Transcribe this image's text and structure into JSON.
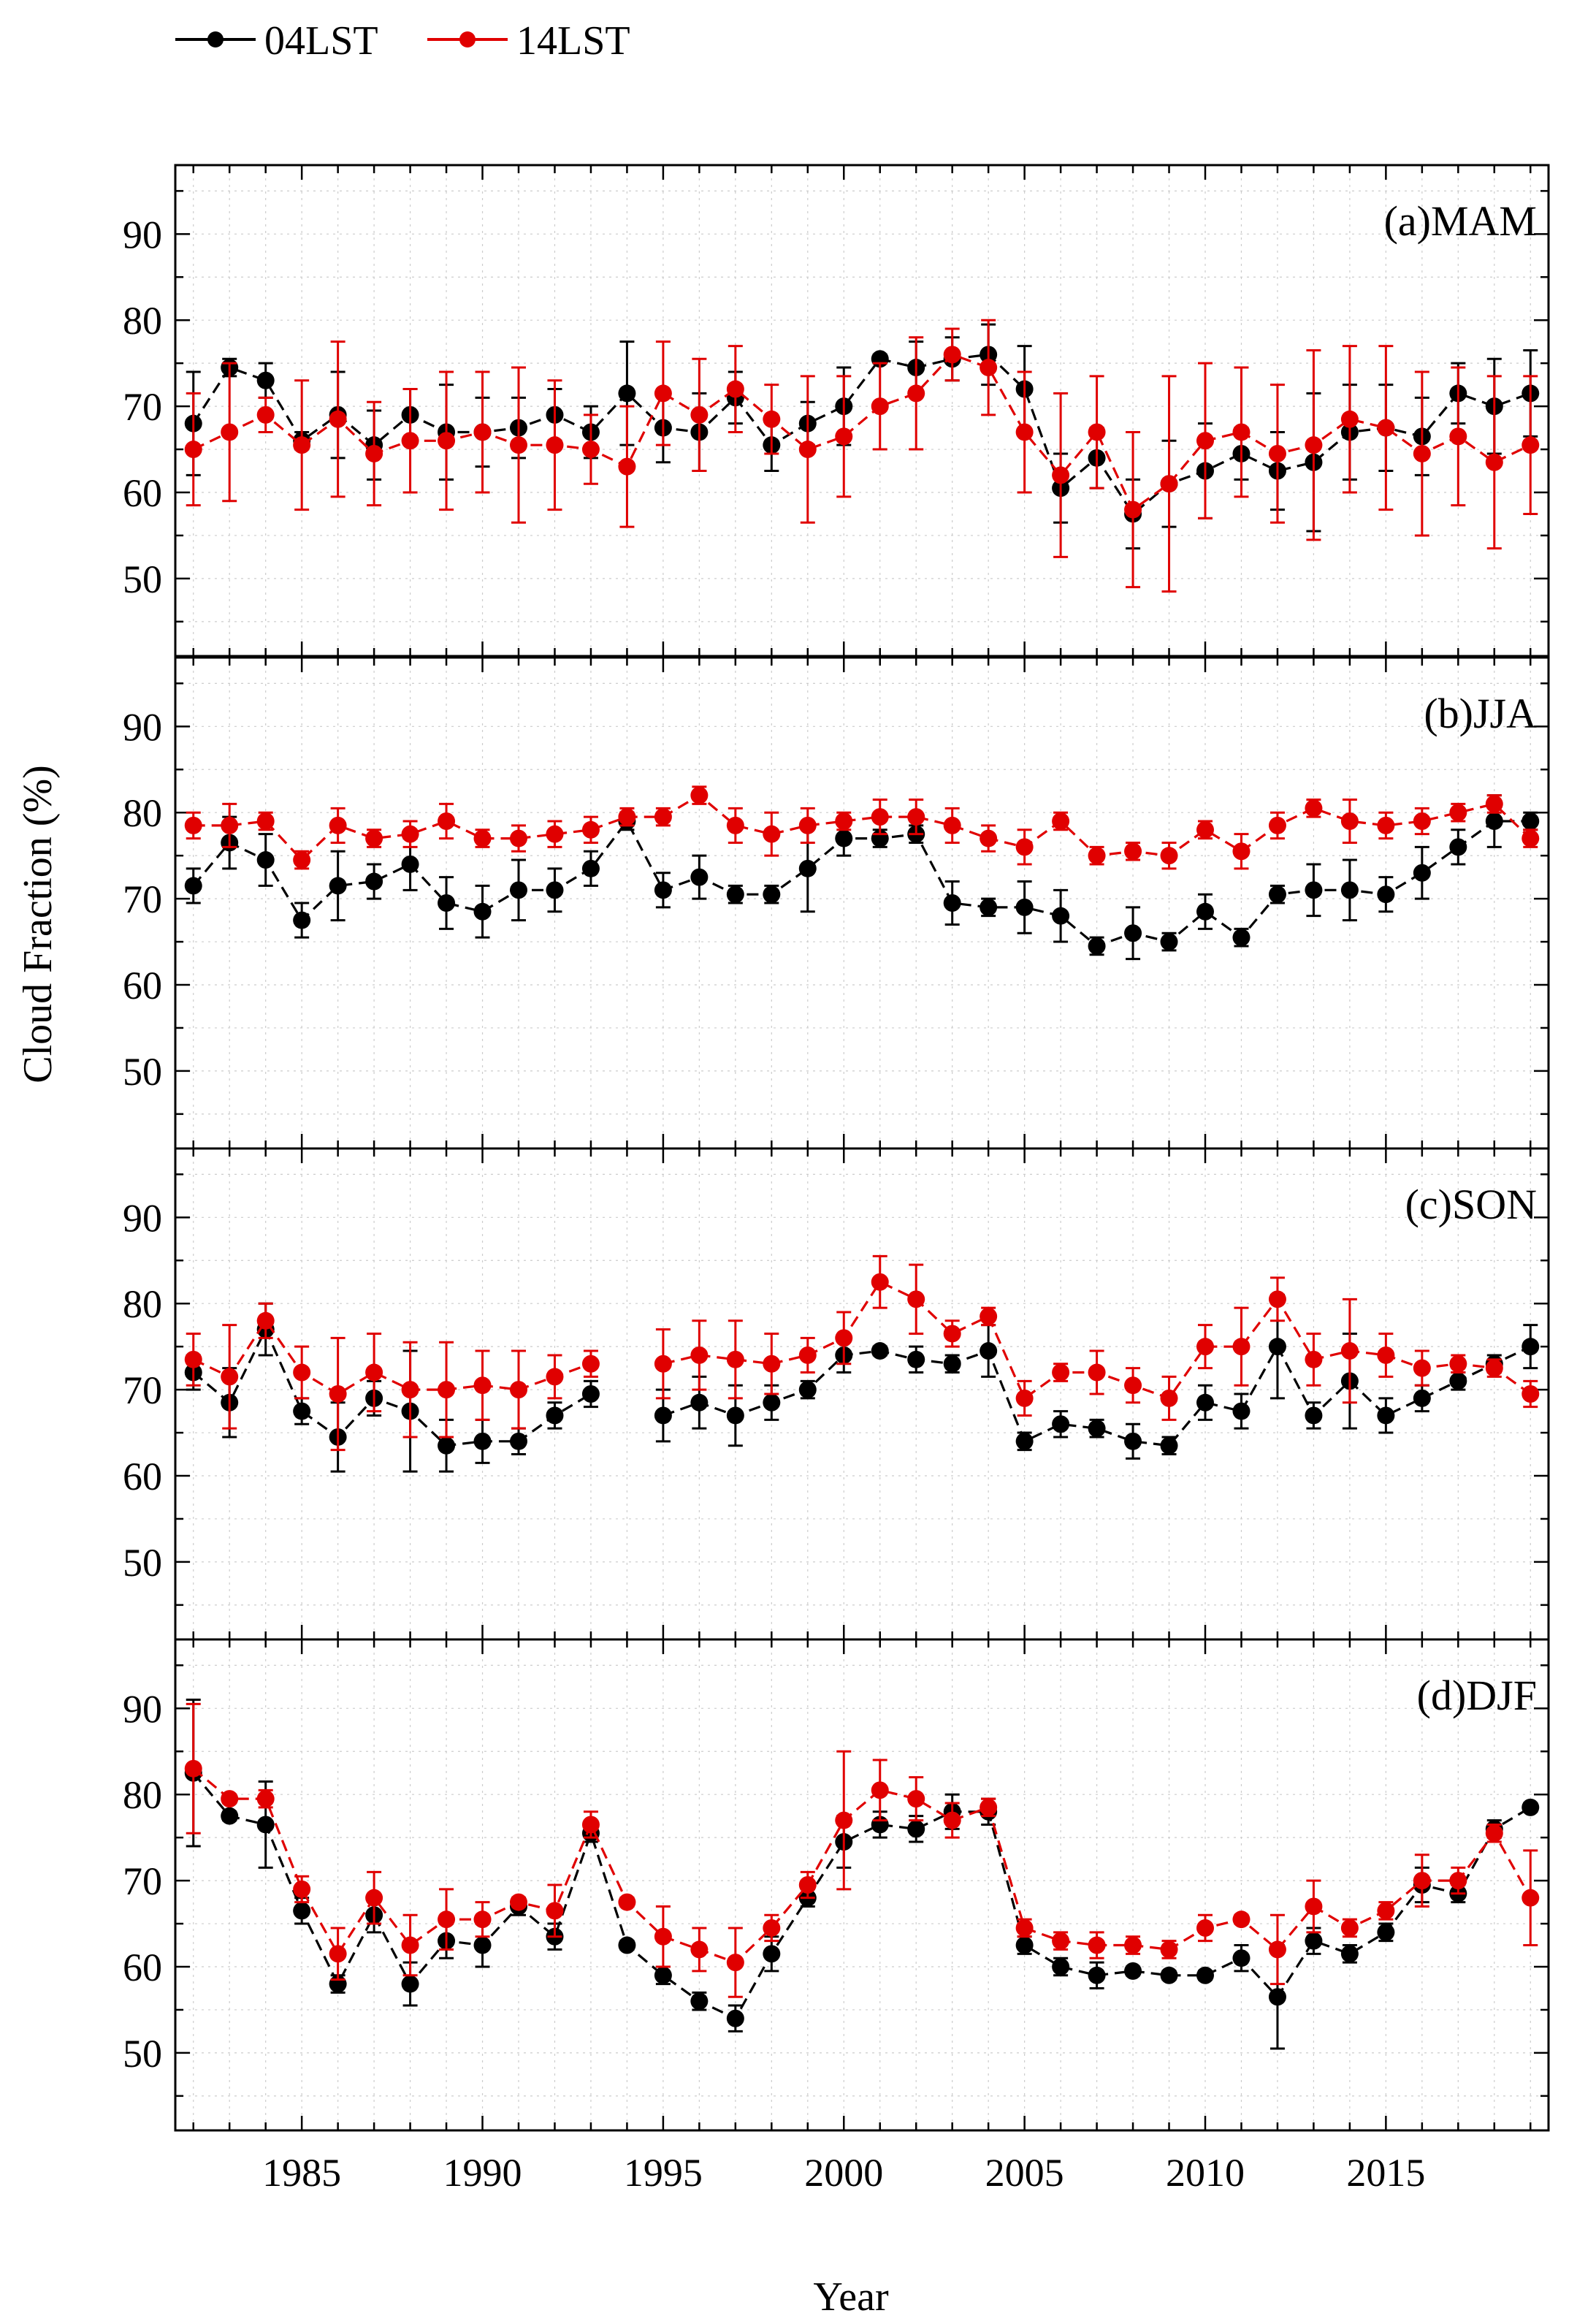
{
  "chart_data": {
    "type": "line",
    "title": "",
    "xlabel": "Year",
    "ylabel": "Cloud Fraction (%)",
    "xlim": [
      1981.5,
      2019.5
    ],
    "ylim": [
      41,
      98
    ],
    "x_ticks": [
      "1985",
      "1990",
      "1995",
      "2000",
      "2005",
      "2010",
      "2015"
    ],
    "y_ticks": [
      "50",
      "60",
      "70",
      "80",
      "90"
    ],
    "grid": true,
    "legend_position": "top-left",
    "legend": [
      {
        "name": "04LST",
        "color": "#000000"
      },
      {
        "name": "14LST",
        "color": "#e00000"
      }
    ],
    "x": [
      1982,
      1983,
      1984,
      1985,
      1986,
      1987,
      1988,
      1989,
      1990,
      1991,
      1992,
      1993,
      1994,
      1995,
      1996,
      1997,
      1998,
      1999,
      2000,
      2001,
      2002,
      2003,
      2004,
      2005,
      2006,
      2007,
      2008,
      2009,
      2010,
      2011,
      2012,
      2013,
      2014,
      2015,
      2016,
      2017,
      2018,
      2019
    ],
    "panels": [
      {
        "label": "(a)MAM",
        "series": [
          {
            "name": "04LST",
            "color": "#000000",
            "values": [
              68,
              74.5,
              73,
              66,
              69,
              65.5,
              69,
              67,
              67,
              67.5,
              69,
              67,
              71.5,
              67.5,
              67,
              71,
              65.5,
              68,
              70,
              75.5,
              74.5,
              75.5,
              76,
              72,
              60.5,
              64,
              57.5,
              61,
              62.5,
              64.5,
              62.5,
              63.5,
              67,
              67.5,
              66.5,
              71.5,
              70,
              71.5
            ],
            "errors": [
              6,
              1,
              2,
              1,
              5,
              4,
              3,
              5.5,
              4,
              3.5,
              3,
              3,
              6,
              4,
              4.5,
              3,
              3,
              2.5,
              4.5,
              0.5,
              3,
              2.5,
              3.5,
              5,
              4,
              3.5,
              4,
              5,
              5.5,
              3,
              4.5,
              8,
              5.5,
              5,
              4.5,
              3.5,
              5.5,
              5
            ]
          },
          {
            "name": "14LST",
            "color": "#e00000",
            "values": [
              65,
              67,
              69,
              65.5,
              68.5,
              64.5,
              66,
              66,
              67,
              65.5,
              65.5,
              65,
              63,
              71.5,
              69,
              72,
              68.5,
              65,
              66.5,
              70,
              71.5,
              76,
              74.5,
              67,
              62,
              67,
              58,
              61,
              66,
              67,
              64.5,
              65.5,
              68.5,
              67.5,
              64.5,
              66.5,
              63.5,
              65.5
            ],
            "errors": [
              6.5,
              8,
              2,
              7.5,
              9,
              6,
              6,
              8,
              7,
              9,
              7.5,
              4,
              7,
              6,
              6.5,
              5,
              4,
              8.5,
              7,
              5,
              6.5,
              3,
              5.5,
              7,
              9.5,
              6.5,
              9,
              12.5,
              9,
              7.5,
              8,
              11,
              8.5,
              9.5,
              9.5,
              8,
              10,
              8
            ]
          }
        ]
      },
      {
        "label": "(b)JJA",
        "series": [
          {
            "name": "04LST",
            "color": "#000000",
            "values": [
              71.5,
              76.5,
              74.5,
              67.5,
              71.5,
              72,
              74,
              69.5,
              68.5,
              71,
              71,
              73.5,
              79,
              71,
              72.5,
              70.5,
              70.5,
              73.5,
              77,
              77,
              77.5,
              69.5,
              69,
              69,
              68,
              64.5,
              66,
              65,
              68.5,
              65.5,
              70.5,
              71,
              71,
              70.5,
              73,
              76,
              79,
              79
            ],
            "errors": [
              2,
              3,
              3,
              2,
              4,
              2,
              3,
              3,
              3,
              3.5,
              2.5,
              2,
              1,
              2,
              2.5,
              1,
              1,
              5,
              2,
              1,
              1,
              2.5,
              1,
              3,
              3,
              1,
              3,
              1,
              2,
              1,
              1,
              3,
              3.5,
              2,
              3,
              2,
              3,
              1
            ]
          },
          {
            "name": "14LST",
            "color": "#e00000",
            "values": [
              78.5,
              78.5,
              79,
              74.5,
              78.5,
              77,
              77.5,
              79,
              77,
              77,
              77.5,
              78,
              79.5,
              79.5,
              82,
              78.5,
              77.5,
              78.5,
              79,
              79.5,
              79.5,
              78.5,
              77,
              76,
              79,
              75,
              75.5,
              75,
              78,
              75.5,
              78.5,
              80.5,
              79,
              78.5,
              79,
              80,
              81,
              77
            ],
            "errors": [
              1.5,
              2.5,
              1,
              1,
              2,
              1,
              1.5,
              2,
              1,
              1.5,
              1.5,
              1.5,
              1,
              1,
              1,
              2,
              2.5,
              2,
              1,
              2,
              2,
              2,
              1.5,
              2,
              1,
              1,
              1,
              1.5,
              1,
              2,
              1.5,
              1,
              2.5,
              1.5,
              1.5,
              1,
              1,
              1
            ]
          }
        ]
      },
      {
        "label": "(c)SON",
        "series": [
          {
            "name": "04LST",
            "color": "#000000",
            "values": [
              72,
              68.5,
              77,
              67.5,
              64.5,
              69,
              67.5,
              63.5,
              64,
              64,
              67,
              69.5,
              null,
              67,
              68.5,
              67,
              68.5,
              70,
              74,
              74.5,
              73.5,
              73,
              74.5,
              64,
              66,
              65.5,
              64,
              63.5,
              68.5,
              67.5,
              75,
              67,
              71,
              67,
              69,
              71,
              73,
              75
            ],
            "errors": [
              2,
              4,
              3,
              1.5,
              4,
              2,
              7,
              3,
              2.5,
              1.5,
              1.5,
              1.5,
              null,
              3,
              3,
              3.5,
              2,
              1,
              2,
              0.5,
              1.5,
              1,
              3,
              1,
              1.5,
              1,
              2,
              1,
              2,
              2,
              6,
              1.5,
              5.5,
              2,
              1.5,
              1,
              1,
              2.5
            ]
          },
          {
            "name": "14LST",
            "color": "#e00000",
            "values": [
              73.5,
              71.5,
              78,
              72,
              69.5,
              72,
              70,
              70,
              70.5,
              70,
              71.5,
              73,
              null,
              73,
              74,
              73.5,
              73,
              74,
              76,
              82.5,
              80.5,
              76.5,
              78.5,
              69,
              72,
              72,
              70.5,
              69,
              75,
              75,
              80.5,
              73.5,
              74.5,
              74,
              72.5,
              73,
              72.5,
              69.5
            ],
            "errors": [
              3,
              6,
              2,
              3,
              6.5,
              4.5,
              5.5,
              5.5,
              4,
              4.5,
              2.5,
              1.5,
              null,
              4,
              4,
              4.5,
              3.5,
              2,
              3,
              3,
              4,
              1.5,
              1,
              2,
              1,
              2.5,
              2,
              2.5,
              2.5,
              4.5,
              2.5,
              3,
              6,
              2.5,
              2,
              1,
              1,
              1.5
            ]
          }
        ]
      },
      {
        "label": "(d)DJF",
        "series": [
          {
            "name": "04LST",
            "color": "#000000",
            "values": [
              82.5,
              77.5,
              76.5,
              66.5,
              58,
              66,
              58,
              63,
              62.5,
              67,
              63.5,
              75.5,
              62.5,
              59,
              56,
              54,
              61.5,
              68,
              74.5,
              76.5,
              76,
              78,
              78,
              62.5,
              60,
              59,
              59.5,
              59,
              59,
              61,
              56.5,
              63,
              61.5,
              64,
              69.5,
              68.5,
              76,
              78.5
            ],
            "errors": [
              8.5,
              0.5,
              5,
              1.5,
              1,
              2,
              2.5,
              2,
              2.5,
              1,
              1.5,
              1,
              0.5,
              1,
              1,
              1.5,
              2,
              1,
              3,
              1.5,
              1.5,
              2,
              1.5,
              1,
              1,
              1.5,
              0.5,
              0.5,
              0.5,
              1.5,
              6,
              1.5,
              1,
              1,
              2,
              1,
              1,
              0.5
            ]
          },
          {
            "name": "14LST",
            "color": "#e00000",
            "values": [
              83,
              79.5,
              79.5,
              69,
              61.5,
              68,
              62.5,
              65.5,
              65.5,
              67.5,
              66.5,
              76.5,
              67.5,
              63.5,
              62,
              60.5,
              64.5,
              69.5,
              77,
              80.5,
              79.5,
              77,
              78.5,
              64.5,
              63,
              62.5,
              62.5,
              62,
              64.5,
              65.5,
              62,
              67,
              64.5,
              66.5,
              70,
              70,
              75.5,
              68
            ],
            "errors": [
              7.5,
              0.5,
              1,
              1.5,
              3,
              3,
              3.5,
              3.5,
              2,
              0.5,
              3,
              1.5,
              0.5,
              3.5,
              2.5,
              4,
              1.5,
              1.5,
              8,
              3.5,
              2.5,
              2,
              1,
              1,
              1,
              1.5,
              1,
              1,
              1.5,
              0.5,
              4,
              3,
              1,
              1,
              3,
              1.5,
              1,
              5.5
            ]
          }
        ]
      }
    ]
  }
}
